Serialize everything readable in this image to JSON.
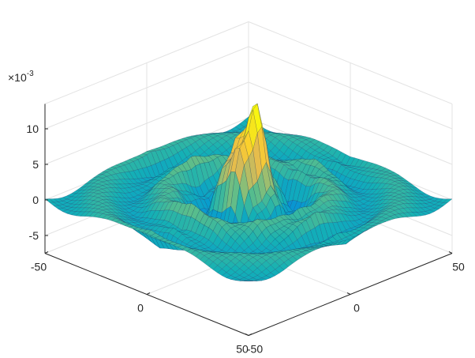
{
  "chart_data": {
    "type": "surface",
    "colormap": "parula",
    "grid": true,
    "x_range": [
      -50,
      50
    ],
    "y_range": [
      -50,
      50
    ],
    "z_range": [
      -0.007,
      0.013
    ],
    "z_exponent_label": "×10",
    "z_exponent_power": "-3",
    "x_ticks": [
      {
        "value": -50,
        "label": "-50"
      },
      {
        "value": 0,
        "label": "0"
      },
      {
        "value": 50,
        "label": "50"
      }
    ],
    "y_ticks": [
      {
        "value": -50,
        "label": "-50"
      },
      {
        "value": 0,
        "label": "0"
      },
      {
        "value": 50,
        "label": "50"
      }
    ],
    "z_ticks": [
      {
        "value": -0.005,
        "label": "-5"
      },
      {
        "value": 0,
        "label": "0"
      },
      {
        "value": 0.005,
        "label": "5"
      },
      {
        "value": 0.01,
        "label": "10"
      }
    ],
    "surface": {
      "description_of_shape": "sinc-like 2D ripple",
      "peak_value": 0.0115,
      "wave_number": 0.27,
      "central_radius_cutoff": 28
    }
  }
}
